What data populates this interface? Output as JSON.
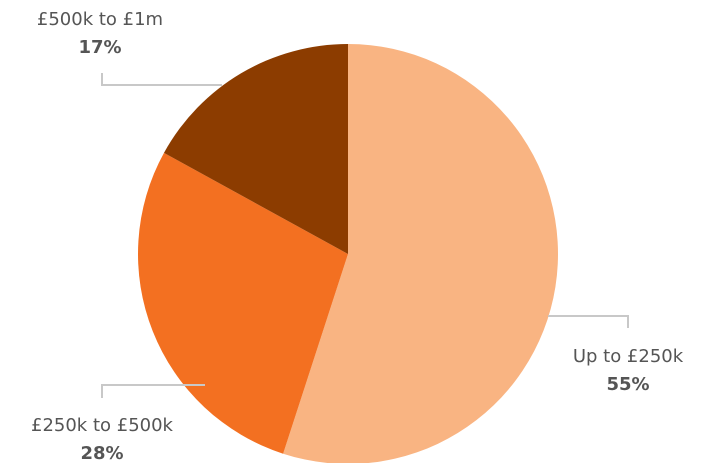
{
  "chart_data": {
    "type": "pie",
    "categories": [
      "Up to £250k",
      "£250k to £500k",
      "£500k to £1m"
    ],
    "values": [
      55,
      28,
      17
    ],
    "value_labels": [
      "55%",
      "28%",
      "17%"
    ],
    "colors": [
      "#f9b482",
      "#f37021",
      "#8c3c00"
    ]
  }
}
